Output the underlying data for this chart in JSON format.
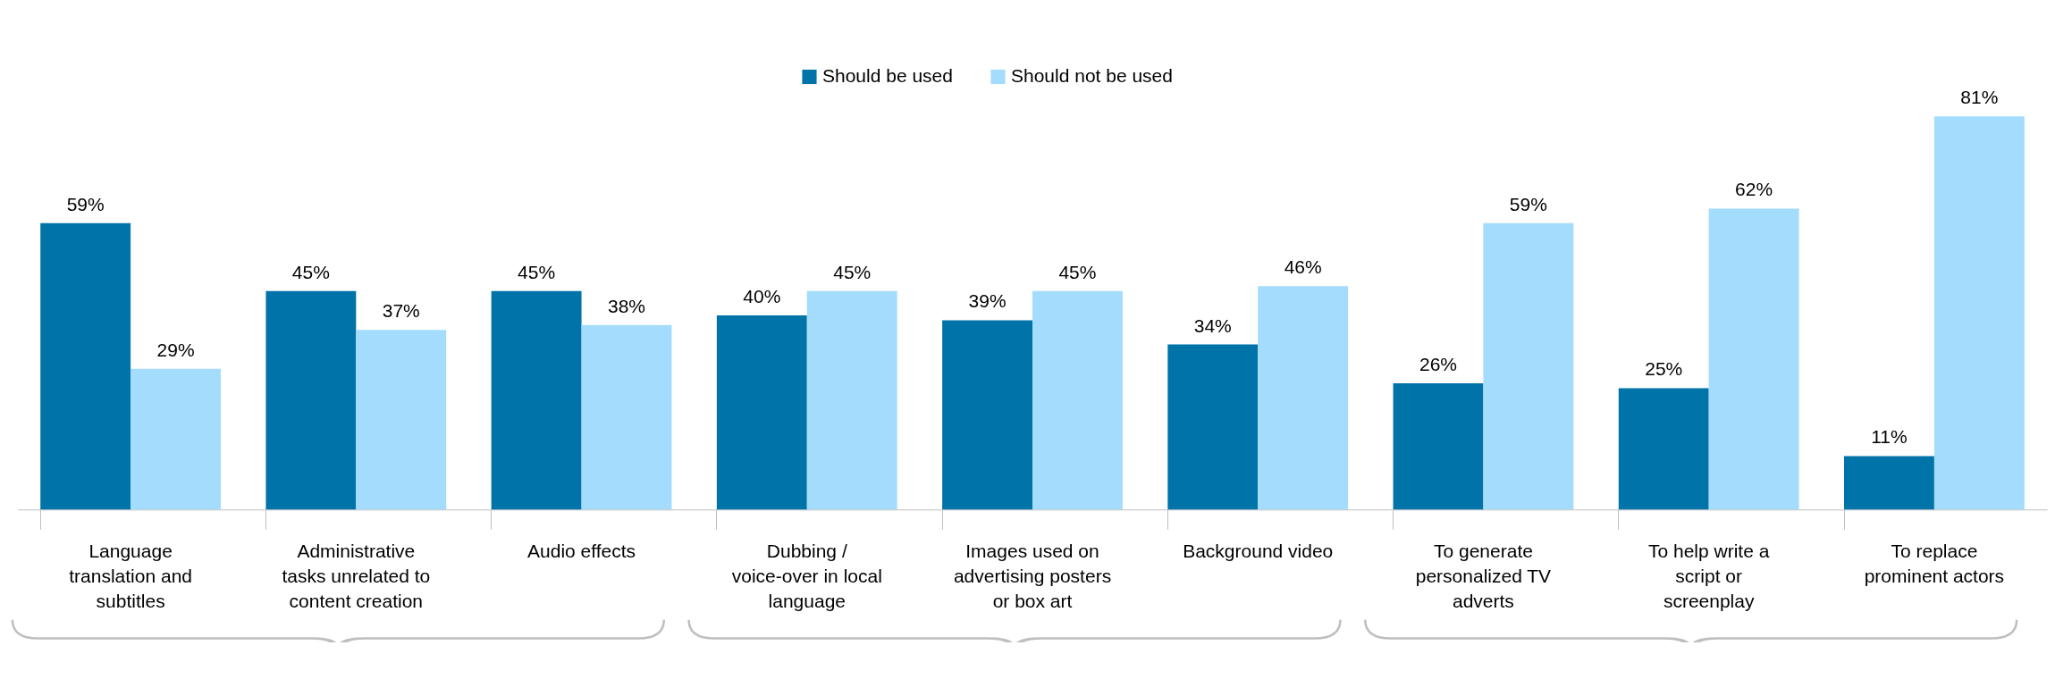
{
  "chart_data": {
    "type": "bar",
    "categories": [
      "Language translation and subtitles",
      "Administrative tasks unrelated to content creation",
      "Audio effects",
      "Dubbing / voice-over in local language",
      "Images used on advertising posters or box art",
      "Background video",
      "To generate personalized TV adverts",
      "To help write a script or screenplay",
      "To replace prominent actors"
    ],
    "series": [
      {
        "name": "Should be used",
        "color": "#0073a8",
        "values": [
          59,
          45,
          45,
          40,
          39,
          34,
          26,
          25,
          11
        ],
        "value_labels": [
          "59%",
          "45%",
          "45%",
          "40%",
          "39%",
          "34%",
          "26%",
          "25%",
          "11%"
        ]
      },
      {
        "name": "Should not be used",
        "color": "#a3dcfc",
        "values": [
          29,
          37,
          38,
          45,
          45,
          46,
          59,
          62,
          81
        ],
        "value_labels": [
          "29%",
          "37%",
          "38%",
          "45%",
          "45%",
          "46%",
          "59%",
          "62%",
          "81%"
        ]
      }
    ],
    "legend": "top",
    "grid": false
  }
}
